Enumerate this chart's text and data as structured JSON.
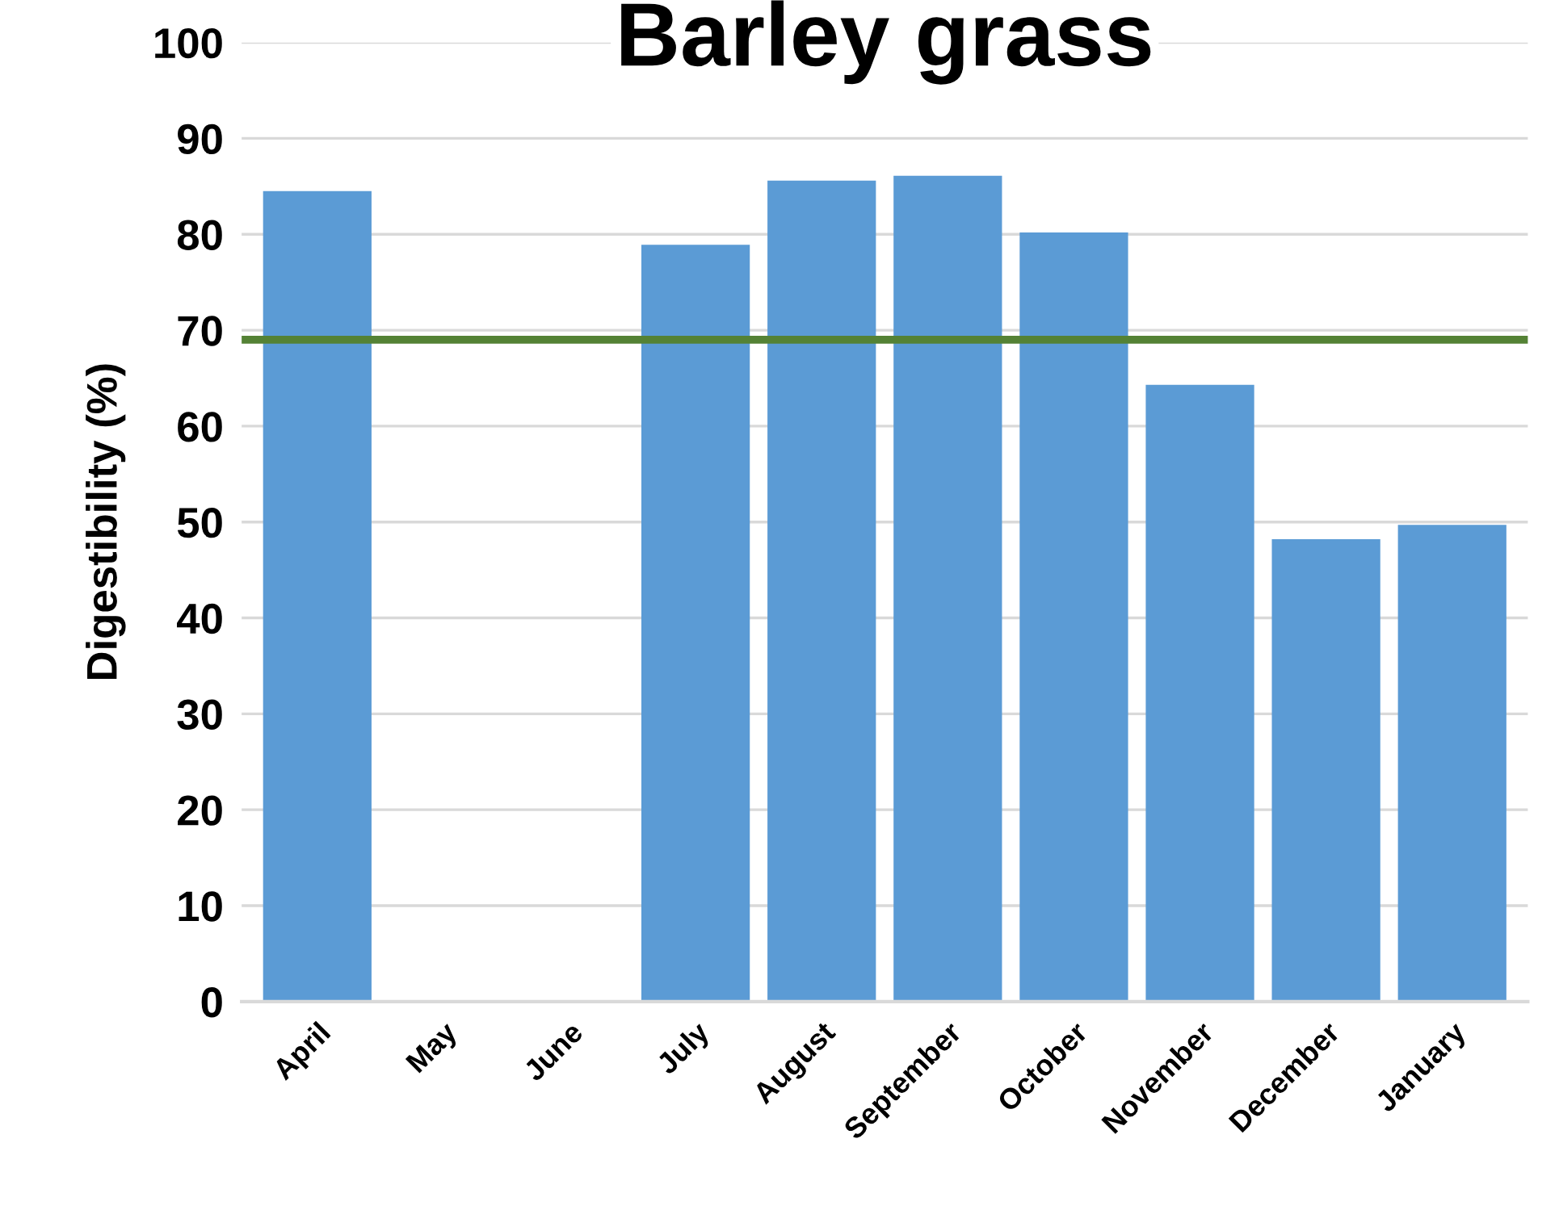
{
  "chart_data": {
    "type": "bar",
    "title": "Barley grass",
    "ylabel": "Digestibility (%)",
    "categories": [
      "April",
      "May",
      "June",
      "July",
      "August",
      "September",
      "October",
      "November",
      "December",
      "January"
    ],
    "values": [
      84.5,
      null,
      null,
      78.9,
      85.6,
      86.1,
      80.2,
      64.3,
      48.2,
      49.7
    ],
    "color": "#5b9bd5",
    "ylim": [
      0,
      100
    ],
    "yticks": [
      0,
      10,
      20,
      30,
      40,
      50,
      60,
      70,
      80,
      90,
      100
    ],
    "grid": "y",
    "ref_lines": [
      {
        "axis": "y",
        "value": 69,
        "color": "#548235"
      }
    ]
  }
}
